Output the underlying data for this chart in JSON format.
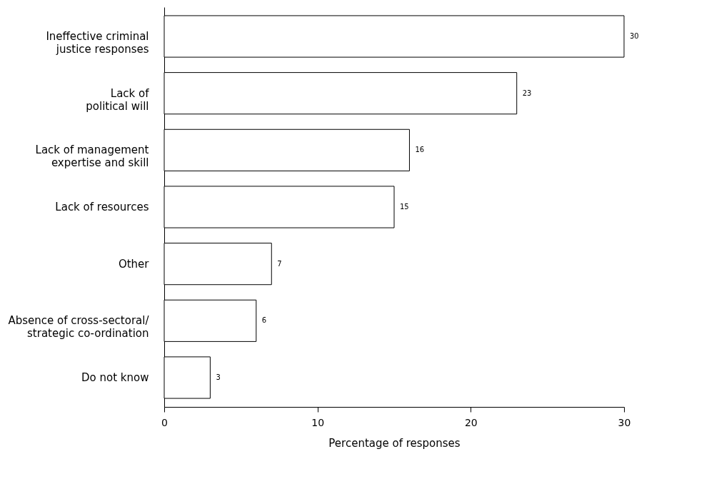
{
  "chart_data": {
    "type": "bar",
    "orientation": "horizontal",
    "xlabel": "Percentage of responses",
    "categories": [
      "Ineffective criminal justice responses",
      "Lack of political will",
      "Lack of management expertise and skill",
      "Lack of resources",
      "Other",
      "Absence of cross-sectoral/ strategic co-ordination",
      "Do not know"
    ],
    "values": [
      30,
      23,
      16,
      15,
      7,
      6,
      3
    ],
    "color": "#ffffff",
    "xlim": [
      0,
      30
    ],
    "xticks": [
      0,
      10,
      20,
      30
    ],
    "grid": false,
    "data_labels": true
  }
}
